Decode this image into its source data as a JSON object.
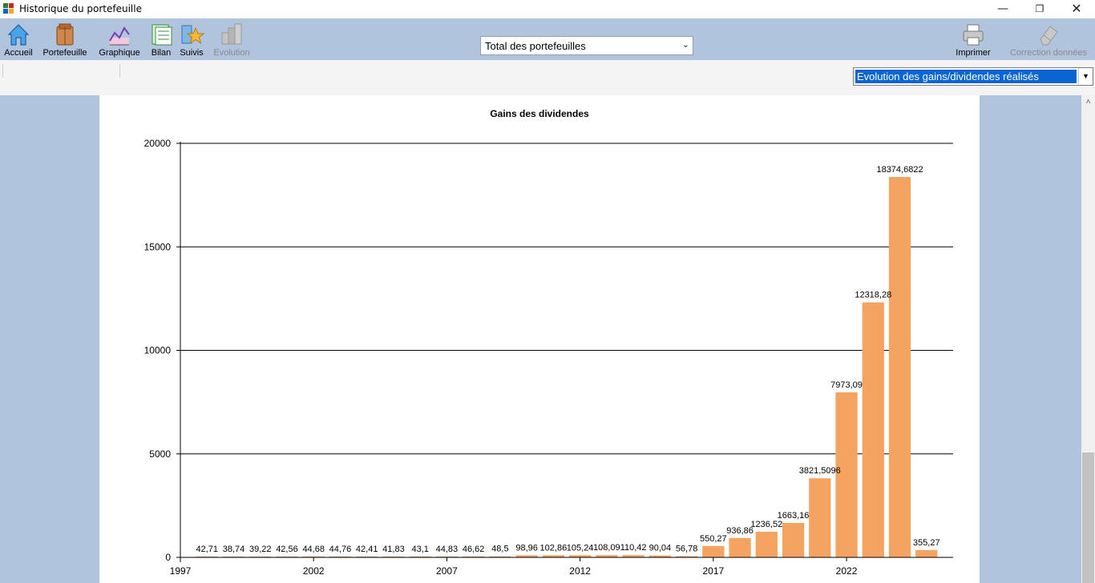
{
  "window": {
    "title": "Historique du portefeuille"
  },
  "toolbar": {
    "buttons": [
      {
        "label": "Accueil",
        "icon": "home-icon",
        "enabled": true
      },
      {
        "label": "Portefeuille",
        "icon": "wallet-icon",
        "enabled": true
      },
      {
        "label": "Graphique",
        "icon": "line-chart-icon",
        "enabled": true
      },
      {
        "label": "Bilan",
        "icon": "ledger-icon",
        "enabled": true
      },
      {
        "label": "Suivis",
        "icon": "star-icon",
        "enabled": true
      },
      {
        "label": "Evolution",
        "icon": "evolution-icon",
        "enabled": false
      },
      {
        "label": "Imprimer",
        "icon": "printer-icon",
        "enabled": true
      },
      {
        "label": "Correction données",
        "icon": "eraser-icon",
        "enabled": false
      }
    ],
    "portfolio_select": {
      "value": "Total des portefeuilles"
    }
  },
  "view_select": {
    "value": "Evolution des gains/dividendes réalisés"
  },
  "colors": {
    "bar": "#f4a460",
    "toolbar": "#b0c4de",
    "selection": "#0a64d2"
  },
  "chart_data": {
    "type": "bar",
    "title": "Gains des dividendes",
    "xlabel": "",
    "ylabel": "",
    "x": [
      1998,
      1999,
      2000,
      2001,
      2002,
      2003,
      2004,
      2005,
      2006,
      2007,
      2008,
      2009,
      2010,
      2011,
      2012,
      2013,
      2014,
      2015,
      2016,
      2017,
      2018,
      2019,
      2020,
      2021,
      2022,
      2023,
      2024,
      2025
    ],
    "values": [
      42.71,
      38.74,
      39.22,
      42.56,
      44.68,
      44.76,
      42.41,
      41.83,
      43.1,
      44.83,
      46.62,
      48.5,
      98.96,
      102.86,
      105.24,
      108.09,
      110.42,
      90.04,
      56.78,
      550.27,
      936.86,
      1236.52,
      1663.16,
      3821.5096,
      7973.09,
      12318.28,
      18374.6822,
      355.27
    ],
    "value_labels": [
      "42,71",
      "38,74",
      "39,22",
      "42,56",
      "44,68",
      "44,76",
      "42,41",
      "41,83",
      "43,1",
      "44,83",
      "46,62",
      "48,5",
      "98,96",
      "102,86",
      "105,24",
      "108,09",
      "110,42",
      "90,04",
      "56,78",
      "550,27",
      "936,86",
      "1236,52",
      "1663,16",
      "3821,5096",
      "7973,09",
      "12318,28",
      "18374,6822",
      "355,27"
    ],
    "x_ticks": [
      1997,
      2002,
      2007,
      2012,
      2017,
      2022
    ],
    "y_ticks": [
      0,
      5000,
      10000,
      15000,
      20000
    ],
    "xlim": [
      1997,
      2026
    ],
    "ylim": [
      0,
      20000
    ],
    "grid": "horizontal",
    "legend": "none"
  }
}
